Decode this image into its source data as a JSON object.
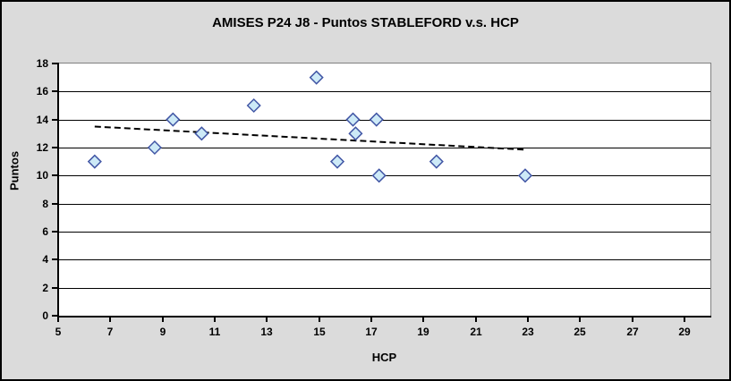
{
  "chart_data": {
    "type": "scatter",
    "title": "AMISES P24 J8 - Puntos STABLEFORD v.s. HCP",
    "xlabel": "HCP",
    "ylabel": "Puntos",
    "xlim": [
      5,
      30
    ],
    "ylim": [
      0,
      18
    ],
    "xticks": [
      5,
      7,
      9,
      11,
      13,
      15,
      17,
      19,
      21,
      23,
      25,
      27,
      29
    ],
    "yticks": [
      0,
      2,
      4,
      6,
      8,
      10,
      12,
      14,
      16,
      18
    ],
    "grid": "horizontal-only",
    "legend_position": "none",
    "series": [
      {
        "name": "Puntos STABLEFORD",
        "marker": "diamond",
        "points": [
          {
            "x": 6.4,
            "y": 11
          },
          {
            "x": 8.7,
            "y": 12
          },
          {
            "x": 9.4,
            "y": 14
          },
          {
            "x": 10.5,
            "y": 13
          },
          {
            "x": 12.5,
            "y": 15
          },
          {
            "x": 14.9,
            "y": 17
          },
          {
            "x": 15.7,
            "y": 11
          },
          {
            "x": 16.3,
            "y": 14
          },
          {
            "x": 16.4,
            "y": 13
          },
          {
            "x": 17.2,
            "y": 14
          },
          {
            "x": 17.3,
            "y": 10
          },
          {
            "x": 19.5,
            "y": 11
          },
          {
            "x": 22.9,
            "y": 10
          }
        ]
      }
    ],
    "trendline": {
      "style": "dashed",
      "x1": 6.4,
      "y1": 13.5,
      "x2": 22.9,
      "y2": 11.85
    },
    "colors": {
      "chart_background": "#DBDBDB",
      "plot_background": "#FFFFFF",
      "outer_border": "#000000",
      "plot_border_gray": "#808080",
      "axis_line": "#000000",
      "gridline": "#000000",
      "marker_fill": "#CDEAF7",
      "marker_stroke": "#4156A5",
      "trendline_color": "#000000",
      "text_color": "#000000"
    }
  }
}
